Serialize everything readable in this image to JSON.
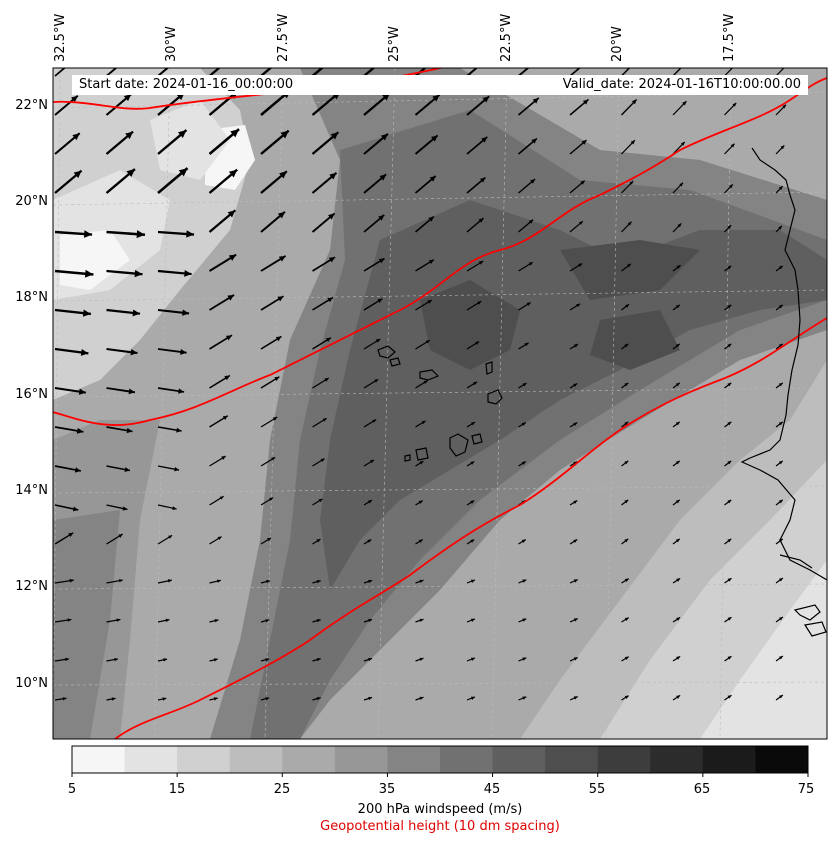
{
  "map": {
    "info": {
      "start_date": "Start date: 2024-01-16_00:00:00",
      "valid_date": "Valid_date: 2024-01-16T10:00:00.00"
    },
    "lon_labels": [
      "32.5°W",
      "30°W",
      "27.5°W",
      "25°W",
      "22.5°W",
      "20°W",
      "17.5°W"
    ],
    "lat_labels": [
      "22°N",
      "20°N",
      "18°N",
      "16°N",
      "14°N",
      "12°N",
      "10°N"
    ],
    "contour_color": "#ff0000",
    "coast_color": "#000000"
  },
  "colorbar": {
    "ticks": [
      "5",
      "15",
      "25",
      "35",
      "45",
      "55",
      "65",
      "75"
    ],
    "colors": [
      "#f6f6f6",
      "#e3e3e3",
      "#d0d0d0",
      "#bdbdbd",
      "#aaaaaa",
      "#979797",
      "#848484",
      "#717171",
      "#5f5f5f",
      "#4e4e4e",
      "#3d3d3d",
      "#2c2c2c",
      "#1b1b1b",
      "#0a0a0a"
    ],
    "title": "200 hPa windspeed (m/s)",
    "subtitle": "Geopotential height (10 dm spacing)"
  }
}
